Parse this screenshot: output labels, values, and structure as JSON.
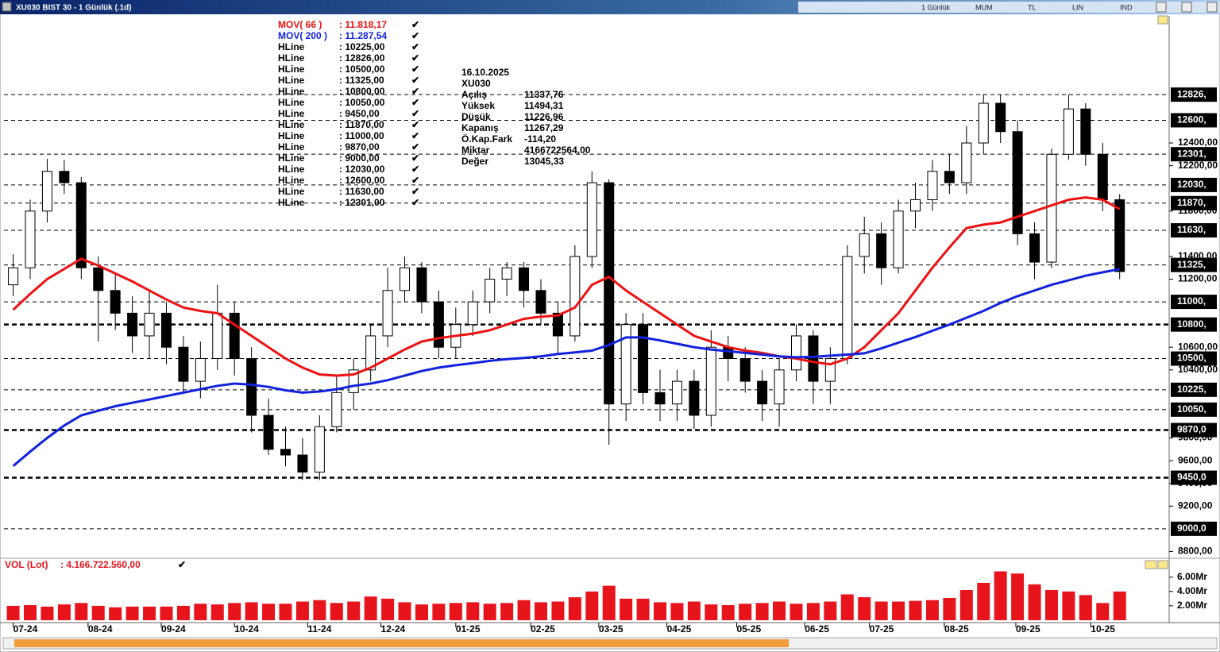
{
  "chart_data": {
    "type": "candlestick",
    "title": "XU030 BIST 30 - 1 Günlük (.1d)",
    "toolbar": [
      "1 Günlük",
      "MUM",
      "TL",
      "LIN",
      "IND"
    ],
    "ylim": [
      8740,
      13520
    ],
    "yticks": [
      {
        "value": 12400,
        "label": "12400,00"
      },
      {
        "value": 12200,
        "label": "12200,00"
      },
      {
        "value": 11800,
        "label": "11800,00"
      },
      {
        "value": 11400,
        "label": "11400,00"
      },
      {
        "value": 11200,
        "label": "11200,00"
      },
      {
        "value": 10600,
        "label": "10600,00"
      },
      {
        "value": 10400,
        "label": "10400,00"
      },
      {
        "value": 9800,
        "label": "9800,00"
      },
      {
        "value": 9600,
        "label": "9600,00"
      },
      {
        "value": 9400,
        "label": "9400,00"
      },
      {
        "value": 9200,
        "label": "9200,00"
      },
      {
        "value": 8800,
        "label": "8800,00"
      }
    ],
    "xlim": [
      -0.4,
      67.3
    ],
    "xticks": [
      {
        "value": 0,
        "label": "07-24"
      },
      {
        "value": 4.4,
        "label": "08-24"
      },
      {
        "value": 8.7,
        "label": "09-24"
      },
      {
        "value": 13,
        "label": "10-24"
      },
      {
        "value": 17.3,
        "label": "11-24"
      },
      {
        "value": 21.6,
        "label": "12-24"
      },
      {
        "value": 26,
        "label": "01-25"
      },
      {
        "value": 30.4,
        "label": "02-25"
      },
      {
        "value": 34.4,
        "label": "03-25"
      },
      {
        "value": 38.4,
        "label": "04-25"
      },
      {
        "value": 42.5,
        "label": "05-25"
      },
      {
        "value": 46.5,
        "label": "06-25"
      },
      {
        "value": 50.3,
        "label": "07-25"
      },
      {
        "value": 54.7,
        "label": "08-25"
      },
      {
        "value": 58.9,
        "label": "09-25"
      },
      {
        "value": 63.3,
        "label": "10-25"
      }
    ],
    "hline_name": "HLine",
    "hlines": [
      {
        "value": 10225,
        "legend": ": 10225,00",
        "axis_label": "10225,",
        "width": 1
      },
      {
        "value": 12826,
        "legend": ": 12826,00",
        "axis_label": "12826,",
        "width": 1
      },
      {
        "value": 10500,
        "legend": ": 10500,00",
        "axis_label": "10500,",
        "width": 1
      },
      {
        "value": 11325,
        "legend": ": 11325,00",
        "axis_label": "11325,",
        "width": 1
      },
      {
        "value": 10800,
        "legend": ": 10800,00",
        "axis_label": "10800,",
        "width": 2.5
      },
      {
        "value": 10050,
        "legend": ": 10050,00",
        "axis_label": "10050,",
        "width": 1
      },
      {
        "value": 9450,
        "legend": ": 9450,00",
        "axis_label": "9450,0",
        "width": 2.5
      },
      {
        "value": 11870,
        "legend": ": 11870,00",
        "axis_label": "11870,",
        "width": 1
      },
      {
        "value": 11000,
        "legend": ": 11000,00",
        "axis_label": "11000,",
        "width": 1
      },
      {
        "value": 9870,
        "legend": ": 9870,00",
        "axis_label": "9870,0",
        "width": 2.5
      },
      {
        "value": 9000,
        "legend": ": 9000,00",
        "axis_label": "9000,0",
        "width": 1
      },
      {
        "value": 12030,
        "legend": ": 12030,00",
        "axis_label": "12030,",
        "width": 1
      },
      {
        "value": 12600,
        "legend": ": 12600,00",
        "axis_label": "12600,",
        "width": 1
      },
      {
        "value": 11630,
        "legend": ": 11630,00",
        "axis_label": "11630,",
        "width": 1
      },
      {
        "value": 12301,
        "legend": ": 12301,00",
        "axis_label": "12301,",
        "width": 1
      }
    ],
    "open": [
      11150,
      11300,
      11800,
      12150,
      12050,
      11300,
      11100,
      10900,
      10700,
      10900,
      10600,
      10300,
      10500,
      10900,
      10500,
      10000,
      9700,
      9650,
      9500,
      9900,
      10200,
      10400,
      10700,
      11100,
      11300,
      11000,
      10600,
      10800,
      11000,
      11200,
      11300,
      11100,
      10900,
      10700,
      11400,
      12050,
      10100,
      10800,
      10200,
      10100,
      10300,
      10000,
      10600,
      10500,
      10300,
      10100,
      10400,
      10700,
      10300,
      10500,
      11400,
      11600,
      11300,
      11800,
      11900,
      12150,
      12050,
      12400,
      12750,
      12500,
      11600,
      11350,
      12300,
      12700,
      12300,
      11900
    ],
    "high": [
      11420,
      11900,
      12260,
      12250,
      12100,
      11400,
      11250,
      11050,
      11100,
      11000,
      10700,
      10650,
      11150,
      11000,
      10600,
      10150,
      9900,
      9800,
      10000,
      10350,
      10500,
      10800,
      11300,
      11400,
      11350,
      11100,
      10950,
      11100,
      11300,
      11350,
      11350,
      11200,
      11000,
      11500,
      12150,
      12080,
      10900,
      10900,
      10400,
      10400,
      10400,
      10750,
      10700,
      10600,
      10400,
      10500,
      10800,
      10750,
      10600,
      11500,
      11750,
      11700,
      11900,
      12050,
      12250,
      12300,
      12550,
      12830,
      12830,
      12600,
      11700,
      12350,
      12826,
      12750,
      12400,
      11950
    ],
    "low": [
      11050,
      11200,
      11700,
      11950,
      11200,
      10650,
      10750,
      10550,
      10500,
      10450,
      10200,
      10150,
      10400,
      10350,
      9850,
      9650,
      9550,
      9430,
      9430,
      9850,
      10050,
      10300,
      10600,
      11000,
      10900,
      10500,
      10500,
      10700,
      10900,
      11050,
      10950,
      10800,
      10550,
      10650,
      11300,
      9740,
      9950,
      10100,
      9950,
      9950,
      9880,
      9900,
      10300,
      10200,
      9950,
      9900,
      10300,
      10100,
      10100,
      10450,
      11250,
      11150,
      11250,
      11650,
      11800,
      11950,
      11950,
      12300,
      12400,
      11500,
      11200,
      11300,
      12250,
      12200,
      11800,
      11200
    ],
    "close": [
      11300,
      11800,
      12150,
      12050,
      11300,
      11100,
      10900,
      10700,
      10900,
      10600,
      10300,
      10500,
      10900,
      10500,
      10000,
      9700,
      9650,
      9500,
      9900,
      10200,
      10400,
      10700,
      11100,
      11300,
      11000,
      10600,
      10800,
      11000,
      11200,
      11300,
      11100,
      10900,
      10700,
      11400,
      12050,
      10100,
      10800,
      10200,
      10100,
      10300,
      10000,
      10600,
      10500,
      10300,
      10100,
      10400,
      10700,
      10300,
      10500,
      11400,
      11600,
      11300,
      11800,
      11900,
      12150,
      12050,
      12400,
      12750,
      12500,
      11600,
      11350,
      12300,
      12700,
      12300,
      11900,
      11267
    ],
    "series": [
      {
        "name": "MOV( 66 )",
        "legend_value": ": 11.818,17",
        "color": "#ee1111",
        "values": [
          10930,
          11070,
          11200,
          11290,
          11380,
          11320,
          11250,
          11180,
          11100,
          11020,
          10950,
          10920,
          10900,
          10800,
          10700,
          10600,
          10500,
          10420,
          10360,
          10350,
          10360,
          10420,
          10500,
          10580,
          10650,
          10680,
          10700,
          10720,
          10750,
          10800,
          10850,
          10870,
          10880,
          10950,
          11150,
          11220,
          11100,
          11000,
          10900,
          10800,
          10700,
          10650,
          10600,
          10570,
          10550,
          10520,
          10500,
          10470,
          10450,
          10500,
          10600,
          10750,
          10900,
          11100,
          11300,
          11480,
          11650,
          11680,
          11700,
          11750,
          11800,
          11850,
          11900,
          11920,
          11900,
          11818
        ]
      },
      {
        "name": "MOV( 200 )",
        "legend_value": ": 11.287,54",
        "color": "#1122dd",
        "values": [
          9553,
          9680,
          9800,
          9910,
          10000,
          10040,
          10080,
          10110,
          10140,
          10170,
          10200,
          10230,
          10260,
          10280,
          10270,
          10250,
          10220,
          10200,
          10210,
          10230,
          10260,
          10280,
          10310,
          10350,
          10390,
          10420,
          10441,
          10460,
          10480,
          10495,
          10505,
          10520,
          10540,
          10555,
          10570,
          10620,
          10686,
          10686,
          10660,
          10630,
          10600,
          10580,
          10565,
          10550,
          10535,
          10520,
          10511,
          10515,
          10525,
          10535,
          10546,
          10590,
          10640,
          10690,
          10745,
          10800,
          10860,
          10920,
          10990,
          11050,
          11100,
          11150,
          11190,
          11230,
          11260,
          11288
        ]
      }
    ],
    "info": {
      "date": "16.10.2025",
      "symbol": "XU030",
      "rows": [
        {
          "label": "Açılış",
          "value": "11337,76"
        },
        {
          "label": "Yüksek",
          "value": "11494,31"
        },
        {
          "label": "Düşük",
          "value": "11226,96"
        },
        {
          "label": "Kapanış",
          "value": "11267,29"
        },
        {
          "label": "Ö.Kap.Fark",
          "value": "-114,20"
        },
        {
          "label": "Miktar",
          "value": "4166722564,00"
        },
        {
          "label": "Değer",
          "value": "13045,33"
        }
      ]
    },
    "volume": {
      "name": "VOL (Lot)",
      "legend_value": ": 4.166.722.560,00",
      "color": "#e8141c",
      "ylim": [
        0,
        8.4
      ],
      "yticks": [
        {
          "value": 6,
          "label": "6.00Mr"
        },
        {
          "value": 4,
          "label": "4.00Mr"
        },
        {
          "value": 2,
          "label": "2.00Mr"
        }
      ],
      "values": [
        2.0,
        2.1,
        1.9,
        2.2,
        2.4,
        2.0,
        1.8,
        1.9,
        1.9,
        1.9,
        2.0,
        2.3,
        2.2,
        2.4,
        2.5,
        2.3,
        2.3,
        2.6,
        2.8,
        2.4,
        2.6,
        3.3,
        3.0,
        2.5,
        2.2,
        2.3,
        2.4,
        2.5,
        2.3,
        2.4,
        2.8,
        2.5,
        2.6,
        3.2,
        4.0,
        4.8,
        3.0,
        3.0,
        2.5,
        2.4,
        2.6,
        2.2,
        2.1,
        2.3,
        2.4,
        2.6,
        2.3,
        2.4,
        2.6,
        3.6,
        3.2,
        2.6,
        2.6,
        2.7,
        2.8,
        3.1,
        4.2,
        5.2,
        6.8,
        6.5,
        5.0,
        4.2,
        4.0,
        3.5,
        2.4,
        4.0
      ]
    }
  }
}
